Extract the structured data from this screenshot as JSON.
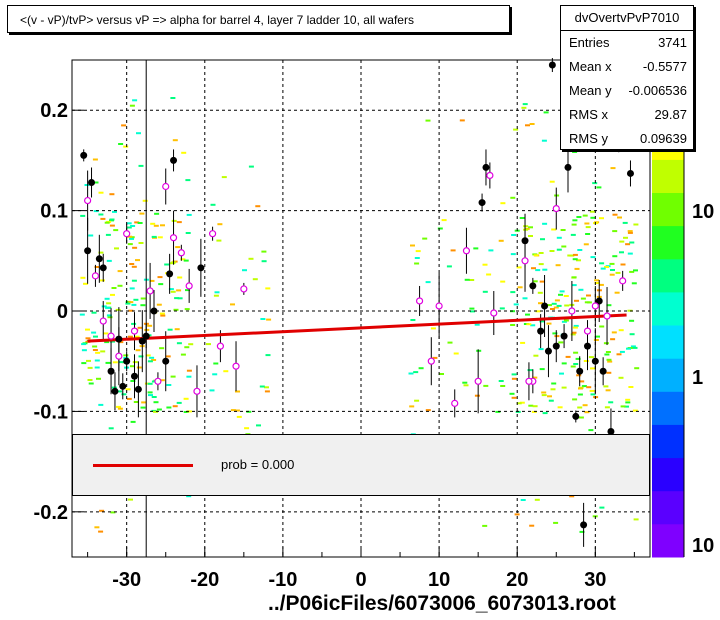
{
  "title": "<(v - vP)/tvP> versus   vP => alpha for barrel 4, layer 7 ladder 10, all wafers",
  "stats": {
    "name": "dvOvertvPvP7010",
    "rows": [
      {
        "label": "Entries",
        "value": "3741"
      },
      {
        "label": "Mean x",
        "value": "-0.5577"
      },
      {
        "label": "Mean y",
        "value": "-0.006536"
      },
      {
        "label": "RMS x",
        "value": "29.87"
      },
      {
        "label": "RMS y",
        "value": "0.09639"
      }
    ]
  },
  "legend": {
    "text": "prob = 0.000",
    "color": "#e00000"
  },
  "footer": "../P06icFiles/6073006_6073013.root",
  "chart_data": {
    "type": "scatter",
    "xlim": [
      -37,
      37
    ],
    "ylim": [
      -0.245,
      0.25
    ],
    "xticks": [
      -30,
      -20,
      -10,
      0,
      10,
      20,
      30
    ],
    "xtick_labels": [
      "-30",
      "-20",
      "-10",
      "0",
      "10",
      "20",
      "30"
    ],
    "yticks": [
      -0.2,
      -0.1,
      0,
      0.1,
      0.2
    ],
    "ytick_labels": [
      "-0.2",
      "-0.1",
      "0",
      "0.1",
      "0.2"
    ],
    "grid": true,
    "colorbar": {
      "tick_labels": [
        "10",
        "1",
        "10"
      ],
      "palette": [
        "#7f00ff",
        "#5a00ff",
        "#2a00ff",
        "#0030ff",
        "#0070ff",
        "#00b0ff",
        "#00e0ff",
        "#00ffd0",
        "#00ff80",
        "#20ff20",
        "#70ff00",
        "#c0ff00",
        "#ffff00",
        "#ffc000",
        "#ff9000"
      ]
    },
    "fit_line": {
      "x": [
        -35,
        34
      ],
      "y": [
        -0.03,
        -0.004
      ],
      "color": "#e00000"
    },
    "black_points": [
      {
        "x": -35.5,
        "y": 0.155
      },
      {
        "x": -34.5,
        "y": 0.128
      },
      {
        "x": -33.5,
        "y": 0.052
      },
      {
        "x": -35,
        "y": 0.06
      },
      {
        "x": -33,
        "y": 0.043
      },
      {
        "x": -32,
        "y": -0.06
      },
      {
        "x": -31,
        "y": -0.028
      },
      {
        "x": -30.5,
        "y": -0.075
      },
      {
        "x": -29,
        "y": -0.065
      },
      {
        "x": -28,
        "y": -0.03
      },
      {
        "x": -27.5,
        "y": -0.025
      },
      {
        "x": -26.5,
        "y": 0.0
      },
      {
        "x": -25,
        "y": -0.05
      },
      {
        "x": -24,
        "y": 0.15
      },
      {
        "x": -24.5,
        "y": 0.037
      },
      {
        "x": -20.5,
        "y": 0.043
      },
      {
        "x": -30,
        "y": -0.05
      },
      {
        "x": -31.5,
        "y": -0.08
      },
      {
        "x": -28.5,
        "y": -0.078
      },
      {
        "x": 15.5,
        "y": 0.108
      },
      {
        "x": 16,
        "y": 0.143
      },
      {
        "x": 21,
        "y": 0.07
      },
      {
        "x": 22,
        "y": 0.025
      },
      {
        "x": 23,
        "y": -0.02
      },
      {
        "x": 24,
        "y": -0.04
      },
      {
        "x": 24.5,
        "y": 0.245
      },
      {
        "x": 25,
        "y": -0.035
      },
      {
        "x": 26.5,
        "y": 0.143
      },
      {
        "x": 27.5,
        "y": -0.105
      },
      {
        "x": 28,
        "y": -0.06
      },
      {
        "x": 29,
        "y": -0.035
      },
      {
        "x": 30,
        "y": -0.05
      },
      {
        "x": 31,
        "y": -0.06
      },
      {
        "x": 32,
        "y": -0.12
      },
      {
        "x": 33,
        "y": 0.19
      },
      {
        "x": 34.5,
        "y": 0.137
      },
      {
        "x": 28.5,
        "y": -0.213
      },
      {
        "x": 23.5,
        "y": 0.005
      },
      {
        "x": 26,
        "y": -0.025
      },
      {
        "x": 30.5,
        "y": 0.01
      }
    ],
    "magenta_points": [
      {
        "x": -35,
        "y": 0.11
      },
      {
        "x": -34,
        "y": 0.035
      },
      {
        "x": -33,
        "y": -0.01
      },
      {
        "x": -31,
        "y": -0.045
      },
      {
        "x": -30,
        "y": 0.077
      },
      {
        "x": -29,
        "y": -0.02
      },
      {
        "x": -27,
        "y": 0.02
      },
      {
        "x": -26,
        "y": -0.07
      },
      {
        "x": -25,
        "y": 0.124
      },
      {
        "x": -24,
        "y": 0.073
      },
      {
        "x": -23,
        "y": 0.058
      },
      {
        "x": -22,
        "y": 0.025
      },
      {
        "x": -21,
        "y": -0.08
      },
      {
        "x": -19,
        "y": 0.077
      },
      {
        "x": -18,
        "y": -0.035
      },
      {
        "x": -16,
        "y": -0.055
      },
      {
        "x": -15,
        "y": 0.022
      },
      {
        "x": 7.5,
        "y": 0.01
      },
      {
        "x": 9,
        "y": -0.05
      },
      {
        "x": 10,
        "y": 0.005
      },
      {
        "x": 12,
        "y": -0.092
      },
      {
        "x": 13.5,
        "y": 0.06
      },
      {
        "x": 15,
        "y": -0.07
      },
      {
        "x": 16.5,
        "y": 0.135
      },
      {
        "x": 17,
        "y": -0.002
      },
      {
        "x": 21,
        "y": 0.05
      },
      {
        "x": 22,
        "y": -0.07
      },
      {
        "x": 25,
        "y": 0.102
      },
      {
        "x": 27,
        "y": 0.0
      },
      {
        "x": 29,
        "y": -0.02
      },
      {
        "x": 30,
        "y": 0.005
      },
      {
        "x": 31.5,
        "y": -0.005
      },
      {
        "x": 33.5,
        "y": 0.03
      },
      {
        "x": 21.5,
        "y": -0.07
      },
      {
        "x": -32,
        "y": -0.025
      }
    ]
  }
}
